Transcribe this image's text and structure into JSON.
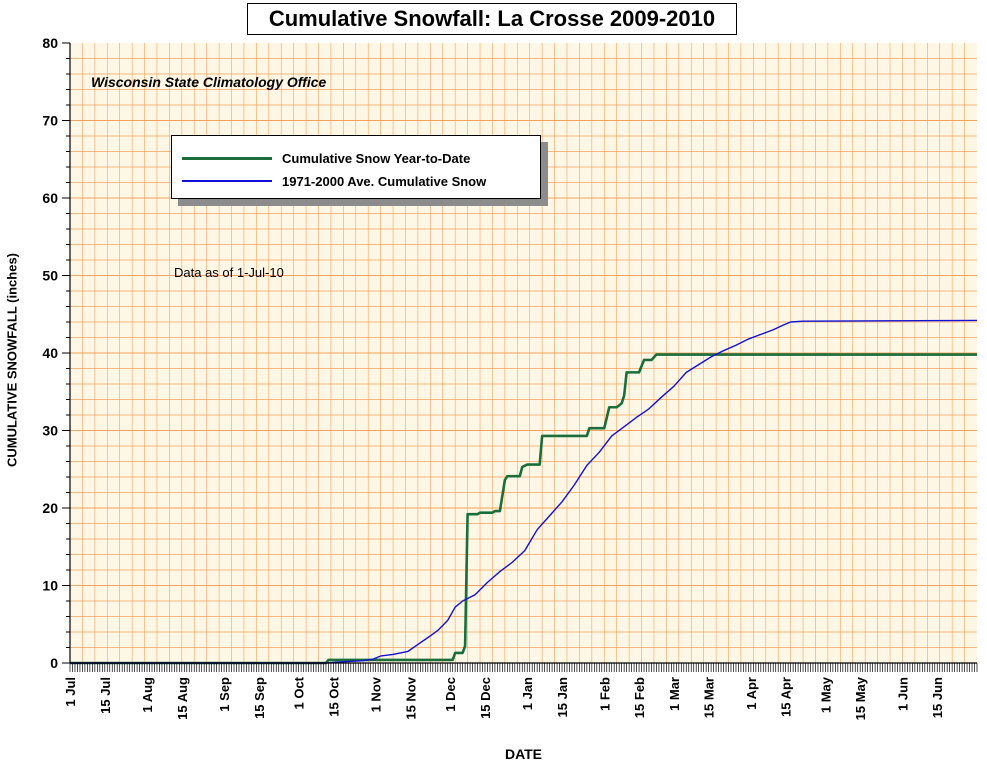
{
  "chart_data": {
    "type": "line",
    "title": "Cumulative Snowfall: La Crosse 2009-2010",
    "subtitle": "Wisconsin State Climatology Office",
    "note": "Data as of 1-Jul-10",
    "xlabel": "DATE",
    "ylabel": "CUMULATIVE SNOWFALL (inches)",
    "xlim": [
      0,
      365
    ],
    "ylim": [
      0,
      80
    ],
    "y_ticks": [
      0,
      10,
      20,
      30,
      40,
      50,
      60,
      70,
      80
    ],
    "x_ticks": [
      {
        "day": 0,
        "label": "1 Jul"
      },
      {
        "day": 14,
        "label": "15 Jul"
      },
      {
        "day": 31,
        "label": "1 Aug"
      },
      {
        "day": 45,
        "label": "15 Aug"
      },
      {
        "day": 62,
        "label": "1 Sep"
      },
      {
        "day": 76,
        "label": "15 Sep"
      },
      {
        "day": 92,
        "label": "1 Oct"
      },
      {
        "day": 106,
        "label": "15 Oct"
      },
      {
        "day": 123,
        "label": "1 Nov"
      },
      {
        "day": 137,
        "label": "15 Nov"
      },
      {
        "day": 153,
        "label": "1 Dec"
      },
      {
        "day": 167,
        "label": "15 Dec"
      },
      {
        "day": 184,
        "label": "1 Jan"
      },
      {
        "day": 198,
        "label": "15 Jan"
      },
      {
        "day": 215,
        "label": "1 Feb"
      },
      {
        "day": 229,
        "label": "15 Feb"
      },
      {
        "day": 243,
        "label": "1 Mar"
      },
      {
        "day": 257,
        "label": "15 Mar"
      },
      {
        "day": 274,
        "label": "1 Apr"
      },
      {
        "day": 288,
        "label": "15 Apr"
      },
      {
        "day": 304,
        "label": "1 May"
      },
      {
        "day": 318,
        "label": "15 May"
      },
      {
        "day": 335,
        "label": "1 Jun"
      },
      {
        "day": 349,
        "label": "15 Jun"
      }
    ],
    "grid": true,
    "legend_position": "top-left",
    "colors": {
      "background": "#fff7e6",
      "grid": "#f5a35c",
      "ytd": "#1a6e3a",
      "average": "#1010d8"
    },
    "series": [
      {
        "name": "Cumulative Snow Year-to-Date",
        "color": "#1a6e3a",
        "points": [
          [
            0,
            0
          ],
          [
            103,
            0
          ],
          [
            104,
            0.4
          ],
          [
            154,
            0.4
          ],
          [
            155,
            1.3
          ],
          [
            158,
            1.3
          ],
          [
            159,
            2.2
          ],
          [
            160,
            19.2
          ],
          [
            164,
            19.2
          ],
          [
            165,
            19.4
          ],
          [
            170,
            19.4
          ],
          [
            171,
            19.6
          ],
          [
            173,
            19.6
          ],
          [
            175,
            23.6
          ],
          [
            176,
            24.1
          ],
          [
            181,
            24.1
          ],
          [
            182,
            25.3
          ],
          [
            184,
            25.6
          ],
          [
            189,
            25.6
          ],
          [
            190,
            29.3
          ],
          [
            208,
            29.3
          ],
          [
            209,
            30.3
          ],
          [
            215,
            30.3
          ],
          [
            217,
            33.0
          ],
          [
            220,
            33.0
          ],
          [
            222,
            33.5
          ],
          [
            223,
            34.5
          ],
          [
            224,
            37.5
          ],
          [
            229,
            37.5
          ],
          [
            231,
            39.1
          ],
          [
            234,
            39.1
          ],
          [
            236,
            39.8
          ],
          [
            365,
            39.8
          ]
        ]
      },
      {
        "name": "1971-2000 Ave. Cumulative Snow",
        "color": "#1010d8",
        "points": [
          [
            0,
            0
          ],
          [
            103,
            0
          ],
          [
            107,
            0.1
          ],
          [
            118,
            0.3
          ],
          [
            122,
            0.5
          ],
          [
            125,
            0.9
          ],
          [
            130,
            1.1
          ],
          [
            136,
            1.5
          ],
          [
            140,
            2.4
          ],
          [
            145,
            3.5
          ],
          [
            148,
            4.2
          ],
          [
            152,
            5.5
          ],
          [
            155,
            7.2
          ],
          [
            158,
            8.0
          ],
          [
            163,
            8.8
          ],
          [
            168,
            10.4
          ],
          [
            173,
            11.8
          ],
          [
            178,
            13.0
          ],
          [
            183,
            14.5
          ],
          [
            188,
            17.2
          ],
          [
            193,
            19.0
          ],
          [
            198,
            20.8
          ],
          [
            203,
            23.0
          ],
          [
            208,
            25.5
          ],
          [
            213,
            27.2
          ],
          [
            218,
            29.3
          ],
          [
            223,
            30.5
          ],
          [
            228,
            31.7
          ],
          [
            233,
            32.8
          ],
          [
            238,
            34.3
          ],
          [
            243,
            35.7
          ],
          [
            248,
            37.5
          ],
          [
            253,
            38.5
          ],
          [
            258,
            39.5
          ],
          [
            263,
            40.3
          ],
          [
            268,
            41.0
          ],
          [
            273,
            41.8
          ],
          [
            278,
            42.4
          ],
          [
            283,
            43.0
          ],
          [
            287,
            43.6
          ],
          [
            290,
            44.0
          ],
          [
            295,
            44.1
          ],
          [
            365,
            44.2
          ]
        ]
      }
    ]
  }
}
